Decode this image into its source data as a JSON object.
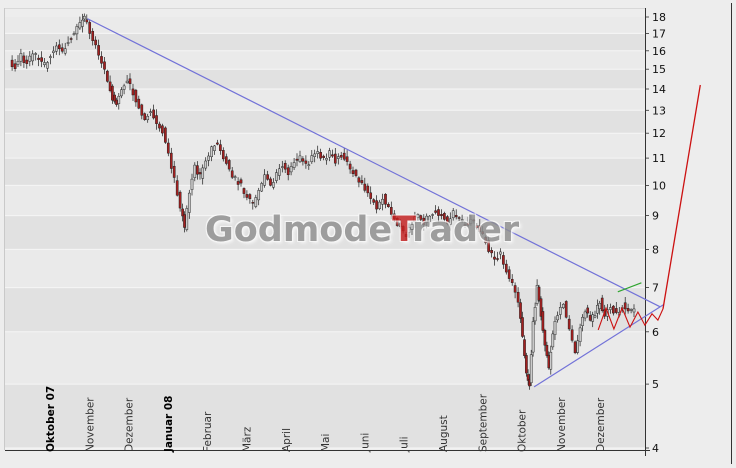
{
  "watermark": {
    "part1": "Godmode",
    "part2": "T",
    "part3": "rader"
  },
  "colors": {
    "background": "#ededed",
    "band_light": "#eaeaea",
    "band_dark": "#e1e1e1",
    "gridline": "#f6f6f6",
    "candle_up": "#cccccc",
    "candle_down": "#a32020",
    "wick": "#1b1b1b",
    "trendline_blue": "#7272d8",
    "pattern_red": "#cc1111",
    "green_mark": "#2fa52f",
    "axis_text": "#111111",
    "axis_line": "#333333",
    "watermark_gray": "#8f8f8f",
    "watermark_red": "#c42020"
  },
  "chart_data": {
    "type": "candlestick",
    "title": "",
    "y_axis": {
      "scale": "log",
      "min": 4,
      "max": 18,
      "ticks": [
        "18",
        "17",
        "16",
        "15",
        "14",
        "13",
        "12",
        "11",
        "10",
        "9",
        "8",
        "7",
        "6",
        "5",
        "4"
      ]
    },
    "x_axis": {
      "labels": [
        {
          "label": "Oktober 07",
          "bold": true
        },
        {
          "label": "November",
          "bold": false
        },
        {
          "label": "Dezember",
          "bold": false
        },
        {
          "label": "Januar 08",
          "bold": true
        },
        {
          "label": "Februar",
          "bold": false
        },
        {
          "label": "März",
          "bold": false
        },
        {
          "label": "April",
          "bold": false
        },
        {
          "label": "Mai",
          "bold": false
        },
        {
          "label": "Juni",
          "bold": false
        },
        {
          "label": "Juli",
          "bold": false
        },
        {
          "label": "August",
          "bold": false
        },
        {
          "label": "September",
          "bold": false
        },
        {
          "label": "Oktober",
          "bold": false
        },
        {
          "label": "November",
          "bold": false
        },
        {
          "label": "Dezember",
          "bold": false
        }
      ]
    },
    "price_path": [
      [
        -0.9,
        15.4
      ],
      [
        -0.75,
        15.1
      ],
      [
        -0.6,
        15.7
      ],
      [
        -0.45,
        15.3
      ],
      [
        -0.3,
        15.9
      ],
      [
        -0.15,
        15.5
      ],
      [
        0,
        15.2
      ],
      [
        0.15,
        15.8
      ],
      [
        0.3,
        16.3
      ],
      [
        0.45,
        15.9
      ],
      [
        0.6,
        16.6
      ],
      [
        0.75,
        17
      ],
      [
        0.9,
        17.5
      ],
      [
        1,
        17.9
      ],
      [
        1.15,
        17.1
      ],
      [
        1.3,
        16.2
      ],
      [
        1.45,
        15.3
      ],
      [
        1.6,
        14.4
      ],
      [
        1.72,
        13.6
      ],
      [
        1.82,
        13.2
      ],
      [
        1.95,
        14
      ],
      [
        2.1,
        14.5
      ],
      [
        2.25,
        13.8
      ],
      [
        2.4,
        13.2
      ],
      [
        2.55,
        12.6
      ],
      [
        2.7,
        12.9
      ],
      [
        2.85,
        12.4
      ],
      [
        3,
        12.1
      ],
      [
        3.15,
        11.2
      ],
      [
        3.3,
        10.2
      ],
      [
        3.45,
        9.3
      ],
      [
        3.55,
        8.6
      ],
      [
        3.68,
        9.8
      ],
      [
        3.82,
        10.7
      ],
      [
        3.95,
        10.3
      ],
      [
        4.1,
        10.8
      ],
      [
        4.25,
        11.4
      ],
      [
        4.4,
        11.6
      ],
      [
        4.55,
        11
      ],
      [
        4.7,
        10.6
      ],
      [
        4.85,
        10.2
      ],
      [
        5,
        10
      ],
      [
        5.15,
        9.6
      ],
      [
        5.3,
        9.3
      ],
      [
        5.45,
        9.9
      ],
      [
        5.6,
        10.3
      ],
      [
        5.75,
        10
      ],
      [
        5.9,
        10.4
      ],
      [
        6.05,
        10.7
      ],
      [
        6.2,
        10.4
      ],
      [
        6.35,
        10.9
      ],
      [
        6.5,
        11
      ],
      [
        6.65,
        10.7
      ],
      [
        6.8,
        11
      ],
      [
        6.95,
        11.2
      ],
      [
        7.1,
        11
      ],
      [
        7.25,
        11.2
      ],
      [
        7.4,
        10.9
      ],
      [
        7.55,
        11.1
      ],
      [
        7.7,
        10.8
      ],
      [
        7.85,
        10.5
      ],
      [
        8,
        10.2
      ],
      [
        8.15,
        9.9
      ],
      [
        8.3,
        9.6
      ],
      [
        8.45,
        9.3
      ],
      [
        8.6,
        9.6
      ],
      [
        8.75,
        9.2
      ],
      [
        8.9,
        8.9
      ],
      [
        9.05,
        8.6
      ],
      [
        9.2,
        8.4
      ],
      [
        9.35,
        8.8
      ],
      [
        9.5,
        9.1
      ],
      [
        9.65,
        8.8
      ],
      [
        9.8,
        9
      ],
      [
        9.95,
        9.2
      ],
      [
        10.1,
        9
      ],
      [
        10.25,
        8.8
      ],
      [
        10.4,
        9.1
      ],
      [
        10.55,
        8.9
      ],
      [
        10.7,
        8.7
      ],
      [
        10.85,
        8.8
      ],
      [
        11,
        8.7
      ],
      [
        11.15,
        8.4
      ],
      [
        11.3,
        8
      ],
      [
        11.45,
        7.7
      ],
      [
        11.6,
        7.9
      ],
      [
        11.75,
        7.4
      ],
      [
        11.9,
        7.1
      ],
      [
        12.05,
        6.6
      ],
      [
        12.15,
        5.9
      ],
      [
        12.25,
        5.2
      ],
      [
        12.32,
        5
      ],
      [
        12.42,
        6.2
      ],
      [
        12.52,
        7
      ],
      [
        12.62,
        6.4
      ],
      [
        12.72,
        5.7
      ],
      [
        12.82,
        5.3
      ],
      [
        12.92,
        6
      ],
      [
        13.05,
        6.4
      ],
      [
        13.2,
        6.6
      ],
      [
        13.35,
        6
      ],
      [
        13.5,
        5.6
      ],
      [
        13.62,
        6.1
      ],
      [
        13.75,
        6.5
      ],
      [
        13.88,
        6.2
      ],
      [
        14,
        6.4
      ],
      [
        14.12,
        6.7
      ],
      [
        14.25,
        6.3
      ],
      [
        14.4,
        6.6
      ],
      [
        14.55,
        6.35
      ],
      [
        14.7,
        6.6
      ],
      [
        14.85,
        6.45
      ],
      [
        15,
        6.55
      ]
    ],
    "annotations": {
      "upper_trendline": {
        "from": [
          1.05,
          17.9
        ],
        "to": [
          15.62,
          6.55
        ],
        "color": "#7272d8"
      },
      "lower_trendline": {
        "from": [
          12.42,
          4.95
        ],
        "to": [
          15.72,
          6.6
        ],
        "color": "#7272d8"
      },
      "triangle_zigzag": {
        "points": [
          [
            14.05,
            6.04
          ],
          [
            14.25,
            6.52
          ],
          [
            14.45,
            6.06
          ],
          [
            14.66,
            6.52
          ],
          [
            14.86,
            6.1
          ],
          [
            15.06,
            6.43
          ],
          [
            15.24,
            6.14
          ],
          [
            15.42,
            6.39
          ],
          [
            15.57,
            6.25
          ],
          [
            15.7,
            6.5
          ]
        ],
        "color": "#cc1111"
      },
      "projection": {
        "from": [
          15.7,
          6.5
        ],
        "to": [
          16.65,
          14.2
        ],
        "color": "#cc1111"
      },
      "breakout_mark": {
        "from": [
          14.55,
          6.9
        ],
        "to": [
          15.15,
          7.12
        ],
        "color": "#2fa52f"
      }
    }
  }
}
